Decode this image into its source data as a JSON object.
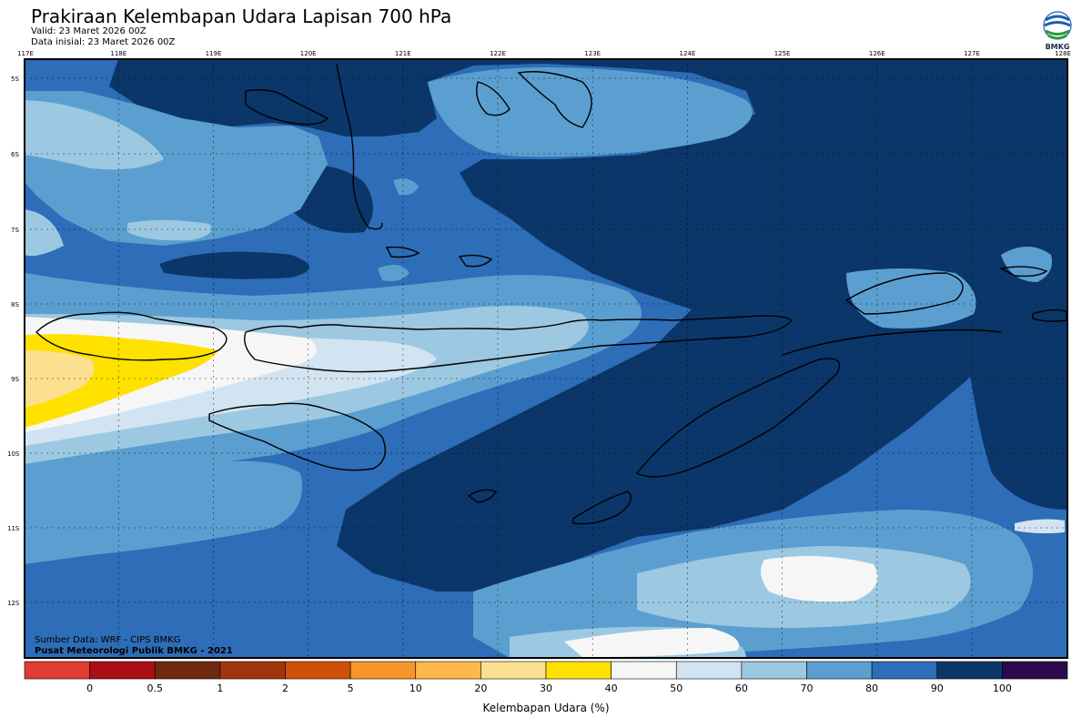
{
  "header": {
    "title": "Prakiraan Kelembapan Udara Lapisan 700 hPa",
    "valid": "Valid: 23 Maret 2026 00Z",
    "init": "Data inisial: 23 Maret 2026 00Z",
    "logo_text": "BMKG"
  },
  "map": {
    "lon_labels": [
      "117E",
      "118E",
      "119E",
      "120E",
      "121E",
      "122E",
      "123E",
      "124E",
      "125E",
      "126E",
      "127E",
      "128E"
    ],
    "lat_labels": [
      "5S",
      "6S",
      "7S",
      "8S",
      "9S",
      "10S",
      "11S",
      "12S"
    ],
    "credit_source": "Sumber Data: WRF - CIPS BMKG",
    "credit_center": "Pusat Meteorologi Publik BMKG - 2021"
  },
  "legend": {
    "title": "Kelembapan Udara (%)",
    "ticks": [
      "0",
      "0.5",
      "1",
      "2",
      "5",
      "10",
      "20",
      "30",
      "40",
      "50",
      "60",
      "70",
      "80",
      "90",
      "100"
    ],
    "colors": [
      "#e03c31",
      "#a90f14",
      "#6e2a10",
      "#a0360c",
      "#cf5008",
      "#f7962a",
      "#fdb94a",
      "#fde08f",
      "#ffe100",
      "#f6f6f6",
      "#d2e3f1",
      "#9cc8e2",
      "#5b9fd0",
      "#2e6db7",
      "#0b3669",
      "#2b0a4e"
    ]
  },
  "palette": {
    "rh_30_40": "#ffe100",
    "rh_40_50": "#f6f6f6",
    "rh_50_60": "#d2e3f1",
    "rh_60_70": "#9cc8e2",
    "rh_70_80": "#5b9fd0",
    "rh_80_90": "#2e6db7",
    "rh_90_100": "#0b3669"
  }
}
